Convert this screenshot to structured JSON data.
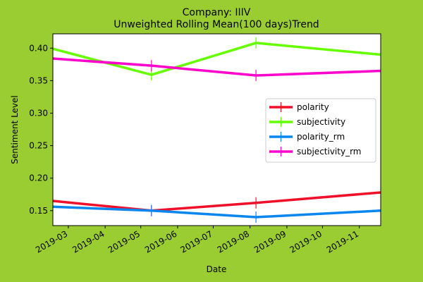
{
  "chart_data": {
    "type": "line",
    "title": "Company: IIIV",
    "subtitle": "Unweighted Rolling Mean(100 days)Trend",
    "xlabel": "Date",
    "ylabel": "Sentiment Level",
    "x_ticks": [
      "2019-03",
      "2019-04",
      "2019-05",
      "2019-06",
      "2019-07",
      "2019-08",
      "2019-09",
      "2019-10",
      "2019-11"
    ],
    "x_tick_dates": [
      "2019-03-01",
      "2019-04-01",
      "2019-05-01",
      "2019-06-01",
      "2019-07-01",
      "2019-08-01",
      "2019-09-01",
      "2019-10-01",
      "2019-11-01"
    ],
    "xlim": [
      "2019-02-16",
      "2019-11-19"
    ],
    "y_ticks": [
      "0.15",
      "0.20",
      "0.25",
      "0.30",
      "0.35",
      "0.40"
    ],
    "ylim": [
      0.127,
      0.422
    ],
    "grid": false,
    "legend_position": "center-right",
    "series": [
      {
        "name": "polarity",
        "color": "#f0102a",
        "x": [
          "2019-02-16",
          "2019-05-10",
          "2019-08-06",
          "2019-11-19"
        ],
        "values": [
          0.165,
          0.15,
          0.162,
          0.178
        ]
      },
      {
        "name": "subjectivity",
        "color": "#66ff00",
        "x": [
          "2019-02-16",
          "2019-05-10",
          "2019-08-06",
          "2019-11-19"
        ],
        "values": [
          0.399,
          0.359,
          0.408,
          0.39
        ]
      },
      {
        "name": "polarity_rm",
        "color": "#0a86ef",
        "x": [
          "2019-02-16",
          "2019-05-10",
          "2019-08-06",
          "2019-11-19"
        ],
        "values": [
          0.156,
          0.15,
          0.14,
          0.15
        ]
      },
      {
        "name": "subjectivity_rm",
        "color": "#ff00cc",
        "x": [
          "2019-02-16",
          "2019-05-10",
          "2019-08-06",
          "2019-11-19"
        ],
        "values": [
          0.384,
          0.373,
          0.358,
          0.365
        ]
      }
    ]
  }
}
